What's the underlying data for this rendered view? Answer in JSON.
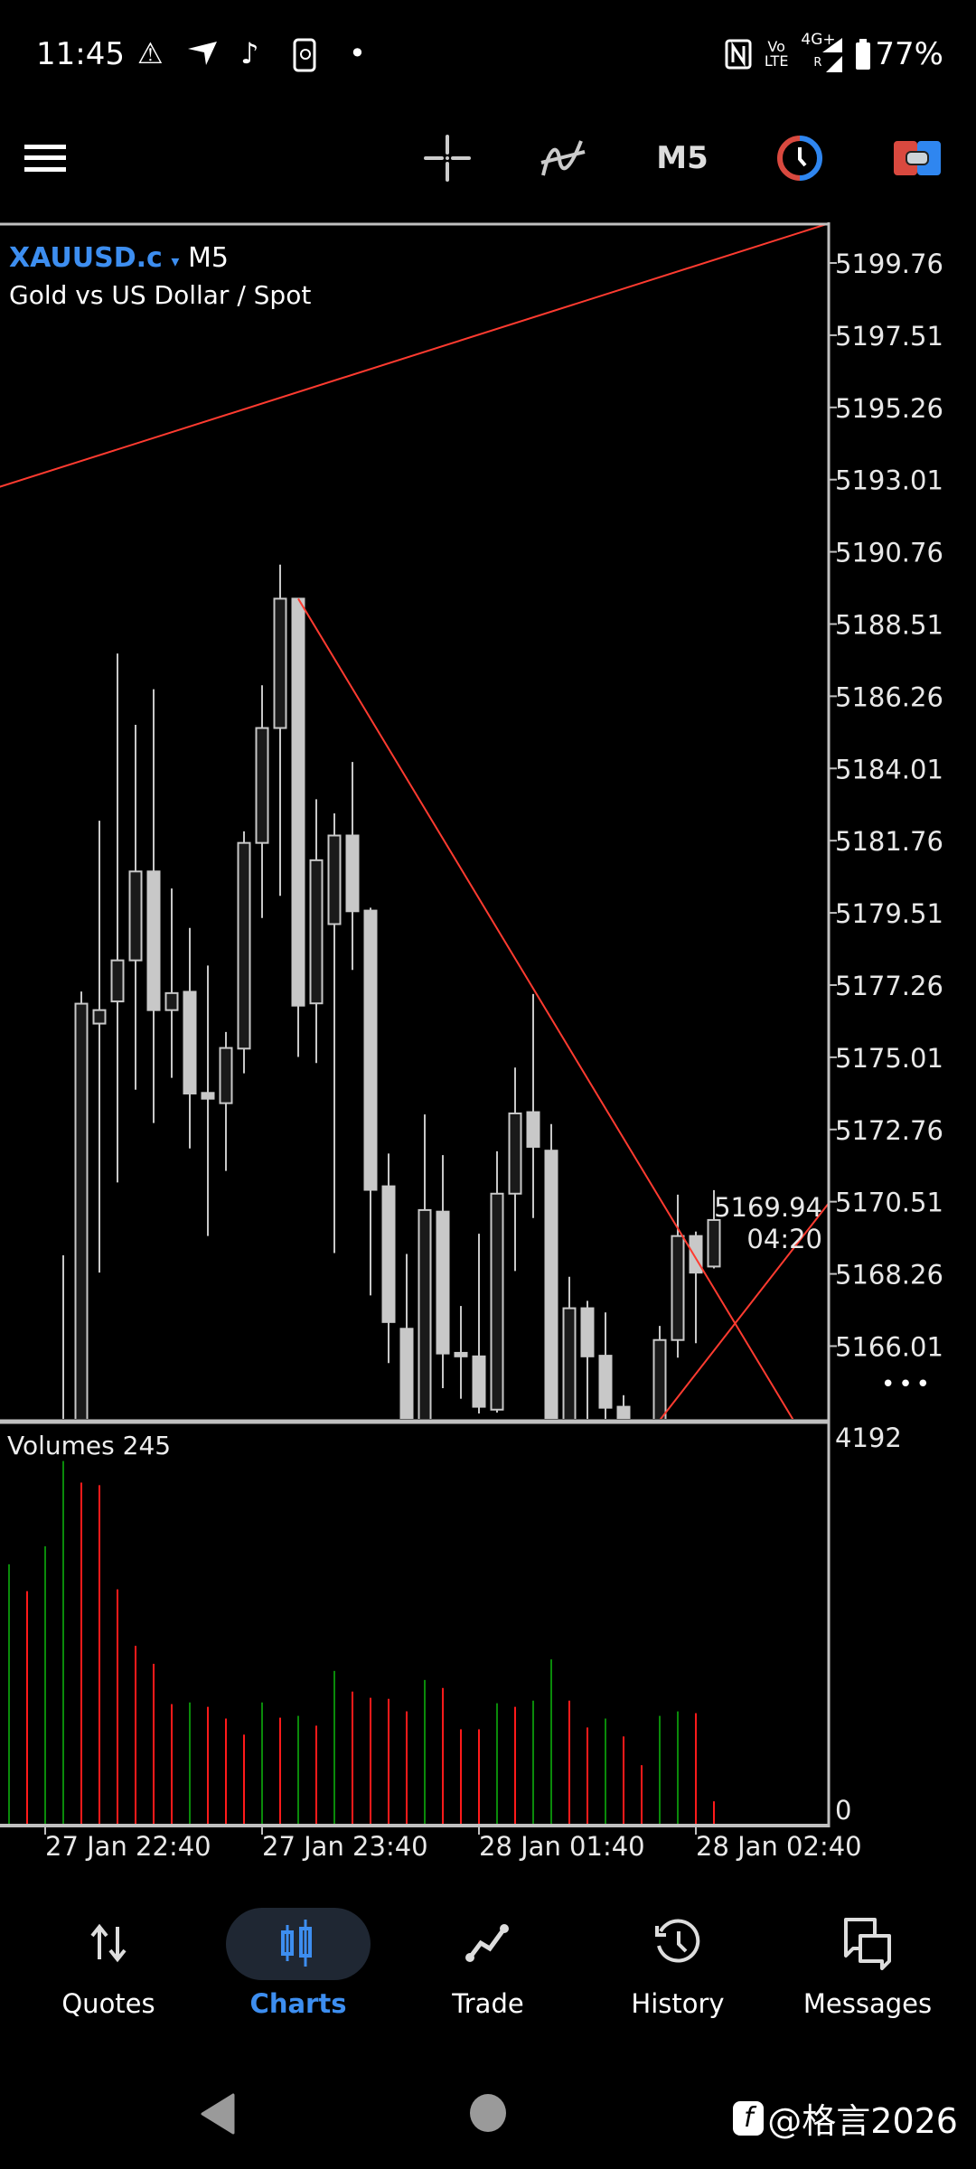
{
  "status_bar": {
    "time": "11:45",
    "left_icons": [
      "warning-icon",
      "navigation-icon",
      "tiktok-icon",
      "phone-sync-icon",
      "dot-icon"
    ],
    "right_icons": [
      "nfc-icon",
      "volte-icon",
      "signal-icon",
      "battery-icon"
    ],
    "volte_top": "Vo",
    "volte_bottom": "LTE",
    "network": "4G+",
    "roaming": "R",
    "battery": "77%"
  },
  "toolbar": {
    "menu_icon": "hamburger-icon",
    "crosshair_icon": "crosshair-icon",
    "indicators_icon": "indicator-icon",
    "timeframe": "M5",
    "colors": {
      "red": "#d9493f",
      "blue": "#2f86f0"
    }
  },
  "chart": {
    "symbol": "XAUUSD.c",
    "symbol_caret": "▾",
    "timeframe": "M5",
    "description": "Gold vs US Dollar / Spot",
    "current_price": "5169.94",
    "countdown": "04:20",
    "more": "•••",
    "volumes_label": "Volumes 245"
  },
  "chart_data": {
    "type": "candlestick",
    "price_axis_ticks": [
      "5199.76",
      "5197.51",
      "5195.26",
      "5193.01",
      "5190.76",
      "5188.51",
      "5186.26",
      "5184.01",
      "5181.76",
      "5179.51",
      "5177.26",
      "5175.01",
      "5172.76",
      "5170.51",
      "5168.26",
      "5166.01"
    ],
    "price_range": [
      5163.7,
      5201.0
    ],
    "time_axis_ticks": [
      {
        "label": "27 Jan 22:40",
        "time": "22:40"
      },
      {
        "label": "27 Jan 23:40",
        "time": "23:40"
      },
      {
        "label": "28 Jan 01:40",
        "time": "01:40"
      },
      {
        "label": "28 Jan 02:40",
        "time": "02:40"
      }
    ],
    "colors": {
      "bull_fill": "#1a1a1a",
      "bear_fill": "#c8c8c8",
      "candle_line": "#c8c8c8",
      "trendline": "#ff3b30",
      "volume_up": "#0a8a0a",
      "volume_down": "#ff1a1a",
      "frame": "#c0c0c0"
    },
    "candles": [
      {
        "t": "22:30",
        "o": null,
        "h": null,
        "l": null,
        "c": null
      },
      {
        "t": "22:35",
        "o": null,
        "h": null,
        "l": null,
        "c": null
      },
      {
        "t": "22:40",
        "o": null,
        "h": null,
        "l": null,
        "c": null
      },
      {
        "t": "22:45",
        "o": 5160.0,
        "h": 5168.84,
        "l": 5158.0,
        "c": 5163.0
      },
      {
        "t": "22:50",
        "o": 5163.0,
        "h": 5177.06,
        "l": 5162.0,
        "c": 5176.68
      },
      {
        "t": "22:55",
        "o": 5176.06,
        "h": 5182.38,
        "l": 5168.3,
        "c": 5176.48
      },
      {
        "t": "23:00",
        "o": 5176.75,
        "h": 5187.59,
        "l": 5171.11,
        "c": 5178.03
      },
      {
        "t": "23:05",
        "o": 5178.03,
        "h": 5185.37,
        "l": 5174.0,
        "c": 5180.8
      },
      {
        "t": "23:10",
        "o": 5180.8,
        "h": 5186.48,
        "l": 5172.96,
        "c": 5176.48
      },
      {
        "t": "23:15",
        "o": 5176.48,
        "h": 5180.27,
        "l": 5174.37,
        "c": 5177.01
      },
      {
        "t": "23:20",
        "o": 5177.05,
        "h": 5179.04,
        "l": 5172.17,
        "c": 5173.88
      },
      {
        "t": "23:25",
        "o": 5173.9,
        "h": 5177.87,
        "l": 5169.44,
        "c": 5173.72
      },
      {
        "t": "23:30",
        "o": 5173.58,
        "h": 5175.8,
        "l": 5171.47,
        "c": 5175.3
      },
      {
        "t": "23:35",
        "o": 5175.28,
        "h": 5182.05,
        "l": 5174.51,
        "c": 5181.69
      },
      {
        "t": "23:40",
        "o": 5181.69,
        "h": 5186.6,
        "l": 5179.35,
        "c": 5185.27
      },
      {
        "t": "23:45",
        "o": 5185.27,
        "h": 5190.36,
        "l": 5180.04,
        "c": 5189.3
      },
      {
        "t": "23:50",
        "o": 5189.3,
        "h": 5189.3,
        "l": 5175.02,
        "c": 5176.62
      },
      {
        "t": "23:55",
        "o": 5176.69,
        "h": 5183.05,
        "l": 5174.83,
        "c": 5181.15
      },
      {
        "t": "01:00",
        "o": 5179.16,
        "h": 5182.61,
        "l": 5168.91,
        "c": 5181.92
      },
      {
        "t": "01:05",
        "o": 5181.92,
        "h": 5184.21,
        "l": 5177.73,
        "c": 5179.56
      },
      {
        "t": "01:10",
        "o": 5179.58,
        "h": 5179.67,
        "l": 5167.59,
        "c": 5170.88
      },
      {
        "t": "01:15",
        "o": 5170.99,
        "h": 5172.01,
        "l": 5165.48,
        "c": 5166.76
      },
      {
        "t": "01:20",
        "o": 5166.55,
        "h": 5168.88,
        "l": 5162.0,
        "c": 5163.0
      },
      {
        "t": "01:25",
        "o": 5163.0,
        "h": 5173.23,
        "l": 5162.5,
        "c": 5170.25
      },
      {
        "t": "01:30",
        "o": 5170.2,
        "h": 5171.96,
        "l": 5164.7,
        "c": 5165.78
      },
      {
        "t": "01:35",
        "o": 5165.8,
        "h": 5167.26,
        "l": 5164.37,
        "c": 5165.69
      },
      {
        "t": "01:40",
        "o": 5165.69,
        "h": 5169.51,
        "l": 5163.91,
        "c": 5164.12
      },
      {
        "t": "01:45",
        "o": 5164.03,
        "h": 5172.08,
        "l": 5163.94,
        "c": 5170.76
      },
      {
        "t": "01:50",
        "o": 5170.76,
        "h": 5174.69,
        "l": 5168.35,
        "c": 5173.26
      },
      {
        "t": "01:55",
        "o": 5173.3,
        "h": 5176.98,
        "l": 5170.0,
        "c": 5172.22
      },
      {
        "t": "02:00",
        "o": 5172.1,
        "h": 5172.93,
        "l": 5162.5,
        "c": 5163.0
      },
      {
        "t": "02:05",
        "o": 5163.2,
        "h": 5168.17,
        "l": 5162.8,
        "c": 5167.19
      },
      {
        "t": "02:10",
        "o": 5167.19,
        "h": 5167.42,
        "l": 5163.5,
        "c": 5165.69
      },
      {
        "t": "02:15",
        "o": 5165.71,
        "h": 5167.06,
        "l": 5163.5,
        "c": 5164.09
      },
      {
        "t": "02:20",
        "o": 5164.12,
        "h": 5164.48,
        "l": 5163.0,
        "c": 5163.3
      },
      {
        "t": "02:25",
        "o": 5163.2,
        "h": 5163.5,
        "l": 5162.5,
        "c": 5163.0
      },
      {
        "t": "02:30",
        "o": 5163.3,
        "h": 5166.64,
        "l": 5163.0,
        "c": 5166.2
      },
      {
        "t": "02:35",
        "o": 5166.2,
        "h": 5170.73,
        "l": 5165.65,
        "c": 5169.44
      },
      {
        "t": "02:40",
        "o": 5169.44,
        "h": 5169.58,
        "l": 5166.1,
        "c": 5168.3
      },
      {
        "t": "02:45",
        "o": 5168.49,
        "h": 5170.87,
        "l": 5168.43,
        "c": 5169.94
      }
    ],
    "volumes": {
      "axis_max": "4192",
      "axis_min": "0",
      "values": [
        2733,
        2451,
        2921,
        3816,
        3590,
        3562,
        2470,
        1877,
        1688,
        1265,
        1283,
        1236,
        1114,
        945,
        1283,
        1123,
        1142,
        1039,
        1613,
        1396,
        1331,
        1321,
        1189,
        1519,
        1434,
        1001,
        1001,
        1274,
        1236,
        1302,
        1735,
        1302,
        1020,
        1114,
        926,
        624,
        1142,
        1189,
        1170,
        245
      ],
      "direction": [
        "up",
        "down",
        "up",
        "up",
        "down",
        "down",
        "down",
        "down",
        "down",
        "down",
        "up",
        "down",
        "down",
        "down",
        "up",
        "down",
        "up",
        "down",
        "up",
        "down",
        "down",
        "down",
        "down",
        "up",
        "down",
        "down",
        "down",
        "up",
        "down",
        "up",
        "up",
        "down",
        "down",
        "up",
        "down",
        "down",
        "up",
        "up",
        "down",
        "down"
      ]
    },
    "trendlines": [
      {
        "from": {
          "t": "22:27",
          "p": 5192.77
        },
        "to": {
          "t": "03:17",
          "p": 5201.0
        }
      },
      {
        "from": {
          "t": "23:50",
          "p": 5189.3
        },
        "to": {
          "t": "03:07",
          "p": 5163.7
        }
      },
      {
        "from": {
          "t": "02:30",
          "p": 5163.7
        },
        "to": {
          "t": "03:17",
          "p": 5170.5
        }
      }
    ]
  },
  "bottom_nav": {
    "items": [
      {
        "label": "Quotes",
        "icon": "quotes-arrows-icon",
        "active": false
      },
      {
        "label": "Charts",
        "icon": "candlestick-icon",
        "active": true
      },
      {
        "label": "Trade",
        "icon": "trade-line-icon",
        "active": false
      },
      {
        "label": "History",
        "icon": "history-clock-icon",
        "active": false
      },
      {
        "label": "Messages",
        "icon": "messages-icon",
        "active": false
      }
    ],
    "active_color": "#3d8ef0"
  },
  "watermark": "@格言2026"
}
